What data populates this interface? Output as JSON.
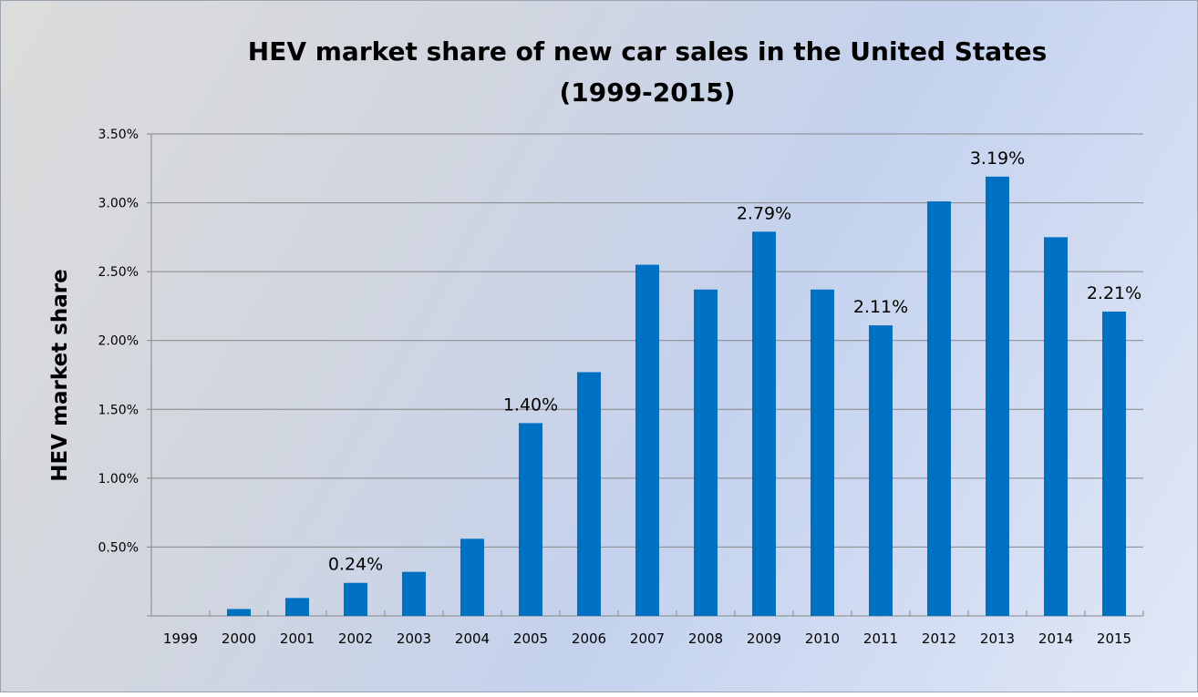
{
  "chart_data": {
    "type": "bar",
    "title": "HEV market share of new car sales in the United States",
    "subtitle": "(1999-2015)",
    "xlabel": "",
    "ylabel": "HEV market share",
    "ylim": [
      0,
      3.5
    ],
    "yticks": [
      "",
      "0.50%",
      "1.00%",
      "1.50%",
      "2.00%",
      "2.50%",
      "3.00%",
      "3.50%"
    ],
    "grid": true,
    "legend": "none",
    "bar_color": "#0070c0",
    "categories": [
      "1999",
      "2000",
      "2001",
      "2002",
      "2003",
      "2004",
      "2005",
      "2006",
      "2007",
      "2008",
      "2009",
      "2010",
      "2011",
      "2012",
      "2013",
      "2014",
      "2015"
    ],
    "values": [
      0.0,
      0.05,
      0.13,
      0.24,
      0.32,
      0.56,
      1.4,
      1.77,
      2.55,
      2.37,
      2.79,
      2.37,
      2.11,
      3.01,
      3.19,
      2.75,
      2.21
    ],
    "data_labels": {
      "2002": "0.24%",
      "2005": "1.40%",
      "2009": "2.79%",
      "2011": "2.11%",
      "2013": "3.19%",
      "2015": "2.21%"
    }
  }
}
